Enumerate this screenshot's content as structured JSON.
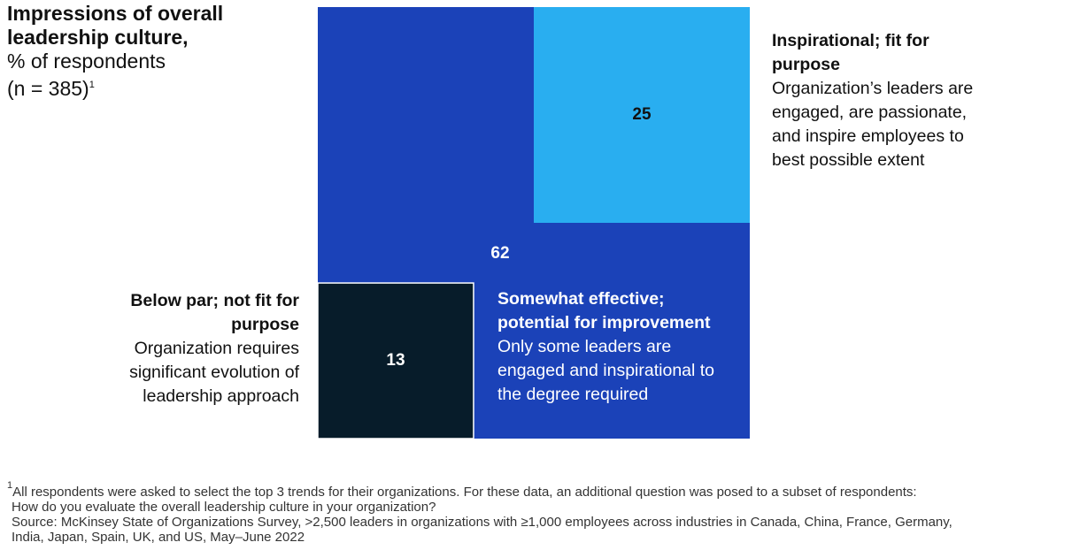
{
  "chart_data": {
    "type": "nested-squares",
    "title": "Impressions of overall leadership culture,",
    "subtitle": "% of respondents",
    "sample": "(n = 385)",
    "sample_note": "1",
    "segments": [
      {
        "name": "Inspirational; fit for purpose",
        "description": "Organization’s leaders are engaged, are passionate, and inspire employees to best possible extent",
        "value": 25,
        "color": "#29aef0"
      },
      {
        "name": "Somewhat effective; potential for improvement",
        "description": "Only some leaders are engaged and inspirational to the degree required",
        "value": 62,
        "color": "#1b42b8"
      },
      {
        "name": "Below par; not fit for purpose",
        "description": "Organization requires significant evolution of leadership approach",
        "value": 13,
        "color": "#071c2a"
      }
    ],
    "footnote_marker": "1",
    "footnote": [
      "All respondents were asked to select the top 3 trends for their organizations. For these data, an additional question was posed to a subset of respondents:",
      "How do you evaluate the overall leadership culture in your organization?"
    ],
    "source": [
      "Source: McKinsey State of Organizations Survey, >2,500 leaders in organizations with ≥1,000 employees across industries in Canada, China, France, Germany,",
      "India, Japan, Spain, UK, and US, May–June 2022"
    ]
  }
}
